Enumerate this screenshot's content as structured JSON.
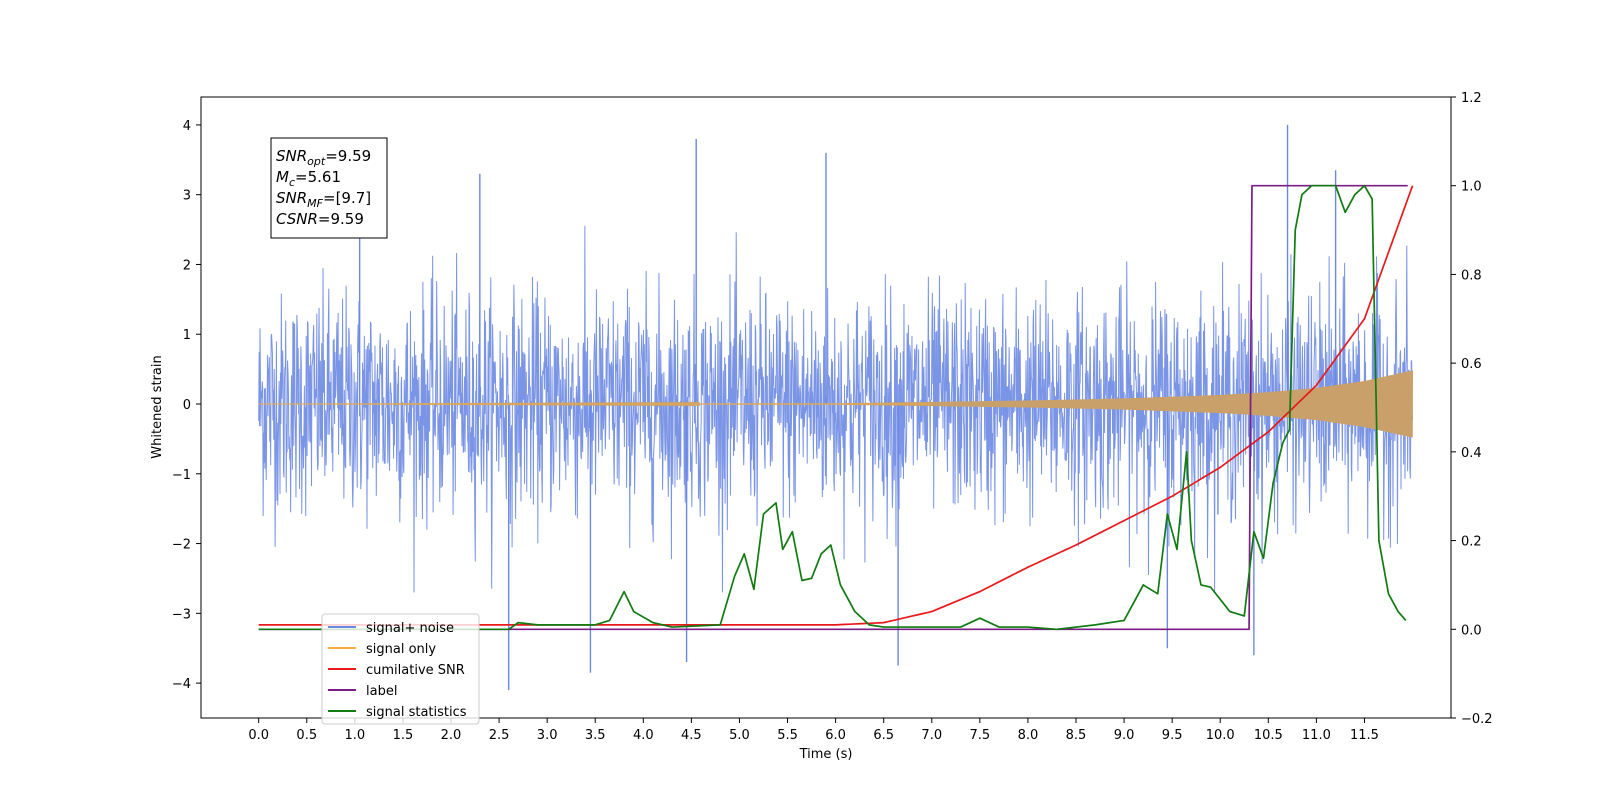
{
  "chart_data": {
    "type": "line",
    "xlabel": "Time (s)",
    "ylabel": "Whitened strain",
    "xlim": [
      -0.6,
      12.4
    ],
    "ylim": [
      -4.5,
      4.4
    ],
    "y2lim": [
      -0.2,
      1.2
    ],
    "x_ticks": [
      "0.0",
      "0.5",
      "1.0",
      "1.5",
      "2.0",
      "2.5",
      "3.0",
      "3.5",
      "4.0",
      "4.5",
      "5.0",
      "5.5",
      "6.0",
      "6.5",
      "7.0",
      "7.5",
      "8.0",
      "8.5",
      "9.0",
      "9.5",
      "10.0",
      "10.5",
      "11.0",
      "11.5"
    ],
    "y_ticks": [
      "4",
      "3",
      "2",
      "1",
      "0",
      "−1",
      "−2",
      "−3",
      "−4"
    ],
    "y2_ticks": [
      "1.2",
      "1.0",
      "0.8",
      "0.6",
      "0.4",
      "0.2",
      "0.0",
      "−0.2"
    ],
    "grid": false,
    "legend_position": "lower-left",
    "annotation": [
      {
        "symbol": "SNR",
        "sub": "opt",
        "value": "=9.59"
      },
      {
        "symbol": "M",
        "sub": "c",
        "value": "=5.61"
      },
      {
        "symbol": "SNR",
        "sub": "MF",
        "value": "=[9.7]"
      },
      {
        "symbol": "CSNR",
        "sub": "",
        "value": "=9.59"
      }
    ],
    "series": [
      {
        "name": "signal+ noise",
        "color": "#6b88e3",
        "axis": "left",
        "style": "noise_band",
        "t_start": 0.0,
        "t_end": 12.0,
        "typical_amplitude": 1.9,
        "spikes": [
          [
            1.05,
            2.9
          ],
          [
            2.3,
            3.3
          ],
          [
            4.55,
            3.8
          ],
          [
            5.9,
            3.6
          ],
          [
            10.7,
            4.0
          ],
          [
            11.2,
            3.35
          ],
          [
            2.6,
            -4.1
          ],
          [
            3.45,
            -3.85
          ],
          [
            4.45,
            -3.7
          ],
          [
            6.65,
            -3.75
          ],
          [
            10.35,
            -3.6
          ],
          [
            9.45,
            -3.5
          ]
        ]
      },
      {
        "name": "signal only",
        "color": "#f5b041",
        "axis": "left",
        "style": "chirp_envelope",
        "x": [
          0.0,
          6.0,
          7.0,
          8.0,
          9.0,
          10.0,
          10.5,
          11.0,
          11.5,
          12.0
        ],
        "envelope": [
          0.0,
          0.01,
          0.03,
          0.05,
          0.08,
          0.13,
          0.17,
          0.23,
          0.33,
          0.48
        ]
      },
      {
        "name": "cumilative SNR",
        "color": "#e8191b",
        "axis": "right",
        "x": [
          0.0,
          6.0,
          6.5,
          7.0,
          7.5,
          8.0,
          8.5,
          9.0,
          9.5,
          10.0,
          10.5,
          11.0,
          11.5,
          12.0
        ],
        "values": [
          0.01,
          0.01,
          0.015,
          0.04,
          0.085,
          0.14,
          0.19,
          0.245,
          0.3,
          0.365,
          0.445,
          0.55,
          0.7,
          1.0
        ]
      },
      {
        "name": "label",
        "color": "#7b1d84",
        "axis": "right",
        "x": [
          0.0,
          10.3,
          10.33,
          11.95
        ],
        "values": [
          0.0,
          0.0,
          1.0,
          1.0
        ]
      },
      {
        "name": "signal statistics",
        "color": "#117a11",
        "axis": "right",
        "x": [
          0.0,
          2.6,
          2.7,
          2.9,
          3.5,
          3.65,
          3.8,
          3.9,
          4.1,
          4.3,
          4.8,
          4.95,
          5.05,
          5.15,
          5.25,
          5.38,
          5.45,
          5.55,
          5.65,
          5.75,
          5.85,
          5.95,
          6.05,
          6.2,
          6.35,
          6.5,
          6.7,
          7.0,
          7.3,
          7.5,
          7.7,
          8.0,
          8.3,
          8.7,
          9.0,
          9.2,
          9.35,
          9.45,
          9.55,
          9.65,
          9.7,
          9.8,
          9.9,
          10.1,
          10.25,
          10.35,
          10.45,
          10.55,
          10.65,
          10.72,
          10.78,
          10.85,
          10.95,
          11.05,
          11.2,
          11.3,
          11.4,
          11.5,
          11.58,
          11.65,
          11.75,
          11.85,
          11.93
        ],
        "values": [
          0.0,
          0.0,
          0.015,
          0.01,
          0.01,
          0.02,
          0.085,
          0.04,
          0.015,
          0.005,
          0.01,
          0.12,
          0.17,
          0.09,
          0.26,
          0.285,
          0.18,
          0.22,
          0.11,
          0.115,
          0.17,
          0.19,
          0.1,
          0.04,
          0.01,
          0.005,
          0.005,
          0.005,
          0.005,
          0.025,
          0.005,
          0.005,
          0.0,
          0.01,
          0.02,
          0.1,
          0.08,
          0.26,
          0.18,
          0.4,
          0.2,
          0.1,
          0.095,
          0.04,
          0.03,
          0.22,
          0.16,
          0.33,
          0.42,
          0.45,
          0.9,
          0.98,
          1.0,
          1.0,
          1.0,
          0.94,
          0.98,
          1.0,
          0.97,
          0.2,
          0.08,
          0.04,
          0.02
        ]
      }
    ]
  }
}
